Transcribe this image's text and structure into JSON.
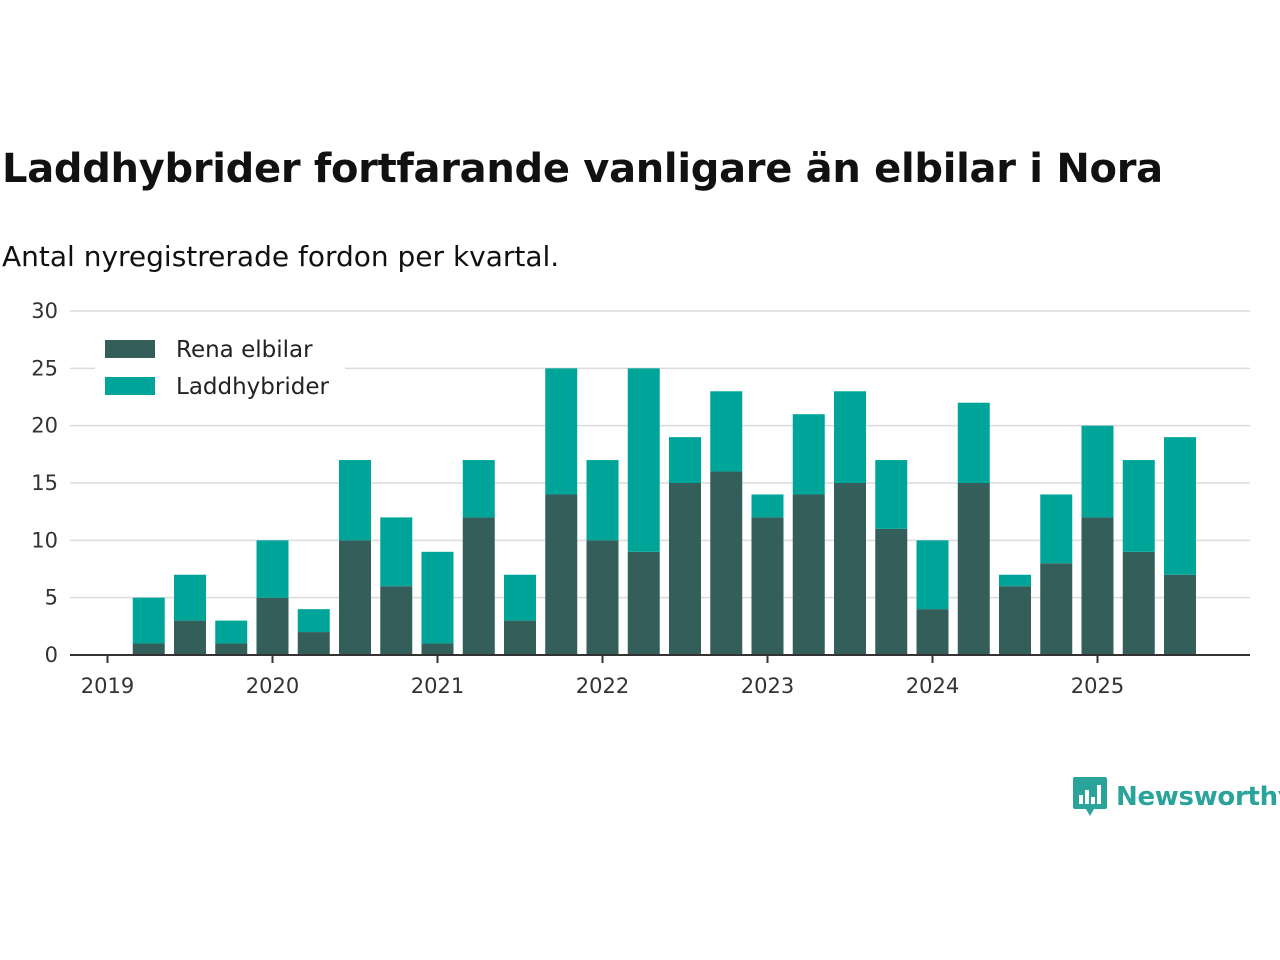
{
  "title": "Laddhybrider fortfarande vanligare än elbilar i Nora",
  "subtitle": "Antal nyregistrerade fordon per kvartal.",
  "brand": {
    "name": "Newsworthy",
    "color": "#2aa39a"
  },
  "chart_data": {
    "type": "bar",
    "stacked": true,
    "ylim": [
      0,
      30
    ],
    "yticks": [
      0,
      5,
      10,
      15,
      20,
      25,
      30
    ],
    "xticks": [
      "2019",
      "2020",
      "2021",
      "2022",
      "2023",
      "2024",
      "2025"
    ],
    "legend_position": "top-left",
    "grid": true,
    "categories": [
      "2019 Q1",
      "2019 Q2",
      "2019 Q3",
      "2019 Q4",
      "2020 Q1",
      "2020 Q2",
      "2020 Q3",
      "2020 Q4",
      "2021 Q1",
      "2021 Q2",
      "2021 Q3",
      "2021 Q4",
      "2022 Q1",
      "2022 Q2",
      "2022 Q3",
      "2022 Q4",
      "2023 Q1",
      "2023 Q2",
      "2023 Q3",
      "2023 Q4",
      "2024 Q1",
      "2024 Q2",
      "2024 Q3",
      "2024 Q4",
      "2025 Q1",
      "2025 Q2",
      "2025 Q3"
    ],
    "series": [
      {
        "name": "Rena elbilar",
        "color": "#335e5a",
        "values": [
          1,
          3,
          1,
          5,
          2,
          10,
          6,
          1,
          12,
          3,
          14,
          10,
          9,
          15,
          16,
          12,
          14,
          15,
          11,
          4,
          15,
          6,
          8,
          12,
          9,
          7,
          0
        ]
      },
      {
        "name": "Laddhybrider",
        "color": "#00a59a",
        "values": [
          4,
          4,
          2,
          5,
          2,
          7,
          6,
          8,
          5,
          4,
          11,
          7,
          16,
          4,
          7,
          2,
          7,
          8,
          6,
          6,
          7,
          1,
          6,
          8,
          8,
          12,
          0
        ]
      }
    ]
  }
}
